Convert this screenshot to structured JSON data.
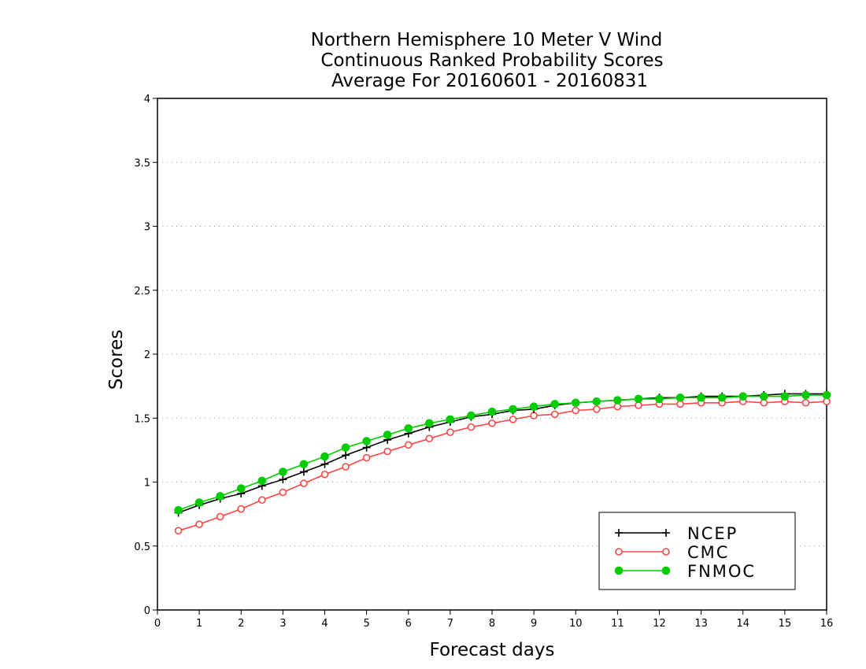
{
  "chart_data": {
    "type": "line",
    "title_lines": [
      "Northern Hemisphere 10 Meter V Wind",
      "Continuous Ranked Probability Scores",
      "Average For 20160601 - 20160831"
    ],
    "xlabel": "Forecast days",
    "ylabel": "Scores",
    "xlim": [
      0,
      16
    ],
    "ylim": [
      0,
      4
    ],
    "xticks": [
      0,
      1,
      2,
      3,
      4,
      5,
      6,
      7,
      8,
      9,
      10,
      11,
      12,
      13,
      14,
      15,
      16
    ],
    "yticks": [
      0,
      0.5,
      1,
      1.5,
      2,
      2.5,
      3,
      3.5,
      4
    ],
    "ytick_labels": [
      "0",
      "0.5",
      "1",
      "1.5",
      "2",
      "2.5",
      "3",
      "3.5",
      "4"
    ],
    "grid": "horizontal-dotted",
    "legend_position": "bottom-right",
    "x": [
      0.5,
      1,
      1.5,
      2,
      2.5,
      3,
      3.5,
      4,
      4.5,
      5,
      5.5,
      6,
      6.5,
      7,
      7.5,
      8,
      8.5,
      9,
      9.5,
      10,
      10.5,
      11,
      11.5,
      12,
      12.5,
      13,
      13.5,
      14,
      14.5,
      15,
      15.5,
      16
    ],
    "series": [
      {
        "name": "NCEP",
        "color": "#000000",
        "marker": "plus",
        "values": [
          0.76,
          0.82,
          0.87,
          0.91,
          0.97,
          1.02,
          1.08,
          1.14,
          1.21,
          1.27,
          1.33,
          1.38,
          1.43,
          1.47,
          1.51,
          1.53,
          1.56,
          1.57,
          1.6,
          1.62,
          1.63,
          1.64,
          1.65,
          1.66,
          1.66,
          1.67,
          1.67,
          1.67,
          1.68,
          1.69,
          1.69,
          1.69
        ]
      },
      {
        "name": "CMC",
        "color": "#ff4444",
        "marker": "open-circle",
        "values": [
          0.62,
          0.67,
          0.73,
          0.79,
          0.86,
          0.92,
          0.99,
          1.06,
          1.12,
          1.19,
          1.24,
          1.29,
          1.34,
          1.39,
          1.43,
          1.46,
          1.49,
          1.52,
          1.53,
          1.56,
          1.57,
          1.59,
          1.6,
          1.61,
          1.61,
          1.62,
          1.62,
          1.63,
          1.62,
          1.63,
          1.62,
          1.63
        ]
      },
      {
        "name": "FNMOC",
        "color": "#00cc00",
        "marker": "filled-circle",
        "values": [
          0.78,
          0.84,
          0.89,
          0.95,
          1.01,
          1.08,
          1.14,
          1.2,
          1.27,
          1.32,
          1.37,
          1.42,
          1.46,
          1.49,
          1.52,
          1.55,
          1.57,
          1.59,
          1.61,
          1.62,
          1.63,
          1.64,
          1.65,
          1.65,
          1.66,
          1.66,
          1.66,
          1.67,
          1.67,
          1.67,
          1.68,
          1.68
        ]
      }
    ]
  }
}
